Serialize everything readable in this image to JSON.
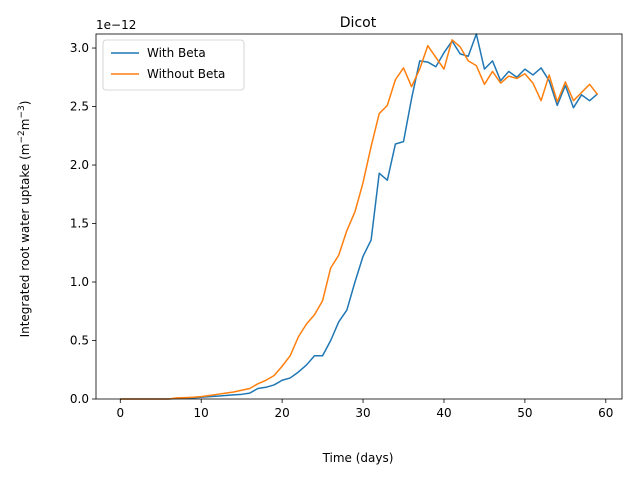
{
  "chart_data": {
    "type": "line",
    "title": "Dicot",
    "xlabel": "Time (days)",
    "ylabel_main": "Integrated root water uptake (m",
    "ylabel_sup1": "−2",
    "ylabel_mid": "m",
    "ylabel_sup2": "−3",
    "ylabel_end": ")",
    "offset_text": "1e−12",
    "xlim": [
      -3.0,
      62.0
    ],
    "ylim": [
      0.0,
      3.12
    ],
    "xticks": [
      0,
      10,
      20,
      30,
      40,
      50,
      60
    ],
    "yticks": [
      0.0,
      0.5,
      1.0,
      1.5,
      2.0,
      2.5,
      3.0
    ],
    "ytick_labels": [
      "0.0",
      "0.5",
      "1.0",
      "1.5",
      "2.0",
      "2.5",
      "3.0"
    ],
    "grid": false,
    "legend_position": "top-left",
    "x": [
      0,
      1,
      2,
      3,
      4,
      5,
      6,
      7,
      8,
      9,
      10,
      11,
      12,
      13,
      14,
      15,
      16,
      17,
      18,
      19,
      20,
      21,
      22,
      23,
      24,
      25,
      26,
      27,
      28,
      29,
      30,
      31,
      32,
      33,
      34,
      35,
      36,
      37,
      38,
      39,
      40,
      41,
      42,
      43,
      44,
      45,
      46,
      47,
      48,
      49,
      50,
      51,
      52,
      53,
      54,
      55,
      56,
      57,
      58,
      59
    ],
    "series": [
      {
        "name": "With Beta",
        "color": "#1f77b4",
        "values": [
          0.0,
          0.0,
          0.0,
          0.0,
          0.0,
          0.0,
          0.0,
          0.005,
          0.008,
          0.01,
          0.015,
          0.02,
          0.025,
          0.03,
          0.035,
          0.04,
          0.05,
          0.09,
          0.1,
          0.12,
          0.16,
          0.18,
          0.23,
          0.29,
          0.37,
          0.37,
          0.5,
          0.66,
          0.76,
          1.0,
          1.22,
          1.36,
          1.93,
          1.87,
          2.18,
          2.2,
          2.57,
          2.89,
          2.88,
          2.84,
          2.96,
          3.06,
          2.95,
          2.93,
          3.12,
          2.82,
          2.89,
          2.72,
          2.8,
          2.75,
          2.82,
          2.77,
          2.83,
          2.72,
          2.51,
          2.68,
          2.49,
          2.6,
          2.55,
          2.61
        ]
      },
      {
        "name": "Without Beta",
        "color": "#ff7f0e",
        "values": [
          0.0,
          0.0,
          0.0,
          0.0,
          0.0,
          0.0,
          0.0,
          0.01,
          0.012,
          0.015,
          0.02,
          0.03,
          0.04,
          0.05,
          0.06,
          0.075,
          0.09,
          0.13,
          0.16,
          0.2,
          0.28,
          0.37,
          0.53,
          0.64,
          0.72,
          0.84,
          1.12,
          1.23,
          1.44,
          1.6,
          1.85,
          2.16,
          2.44,
          2.51,
          2.73,
          2.83,
          2.67,
          2.82,
          3.02,
          2.92,
          2.82,
          3.07,
          3.01,
          2.89,
          2.85,
          2.69,
          2.8,
          2.7,
          2.76,
          2.74,
          2.78,
          2.7,
          2.55,
          2.77,
          2.54,
          2.71,
          2.55,
          2.62,
          2.69,
          2.6
        ]
      }
    ]
  }
}
